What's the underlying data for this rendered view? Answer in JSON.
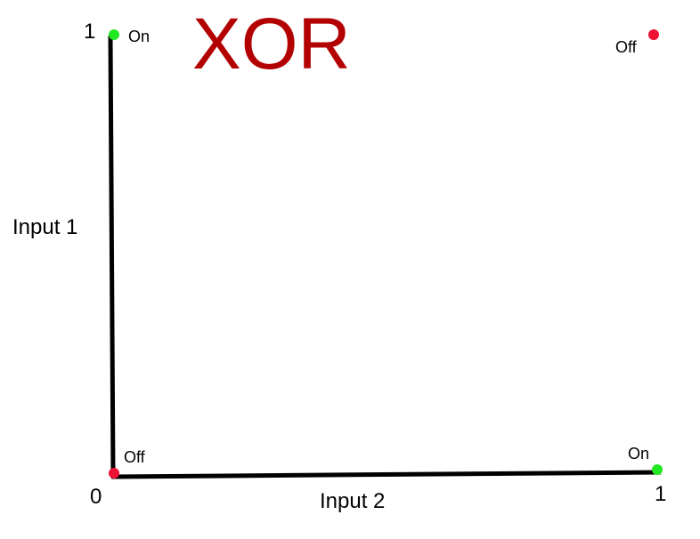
{
  "chart_data": {
    "type": "scatter",
    "title": "XOR",
    "xlabel": "Input 2",
    "ylabel": "Input 1",
    "xlim": [
      0,
      1
    ],
    "ylim": [
      0,
      1
    ],
    "grid": false,
    "x_ticks": [
      "0",
      "1"
    ],
    "y_ticks": [
      "1"
    ],
    "points": [
      {
        "x": 0,
        "y": 1,
        "label": "On",
        "color": "#22e822"
      },
      {
        "x": 1,
        "y": 1,
        "label": "Off",
        "color": "#ee1133"
      },
      {
        "x": 0,
        "y": 0,
        "label": "Off",
        "color": "#ee1133"
      },
      {
        "x": 1,
        "y": 0,
        "label": "On",
        "color": "#22e822"
      }
    ]
  },
  "colors": {
    "title": "#b30000",
    "axis": "#000000"
  }
}
